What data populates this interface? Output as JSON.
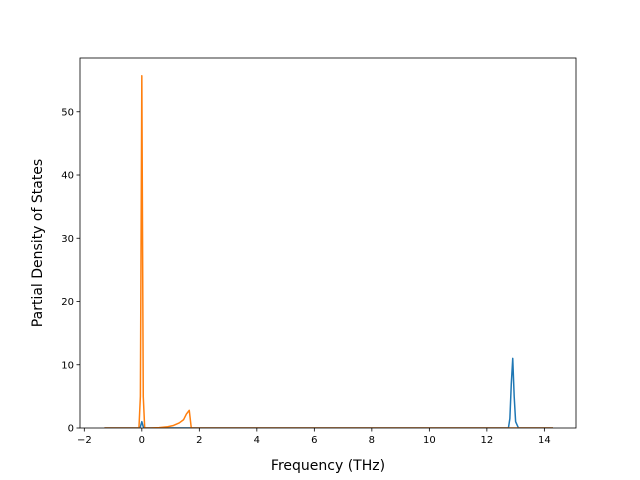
{
  "chart_data": {
    "type": "line",
    "title": "",
    "xlabel": "Frequency (THz)",
    "ylabel": "Partial Density of States",
    "xlim": [
      -2.15,
      15.1
    ],
    "ylim": [
      0,
      58.5
    ],
    "xticks": [
      -2,
      0,
      2,
      4,
      6,
      8,
      10,
      12,
      14
    ],
    "yticks": [
      0,
      10,
      20,
      30,
      40,
      50
    ],
    "xtick_labels": [
      "−2",
      "0",
      "2",
      "4",
      "6",
      "8",
      "10",
      "12",
      "14"
    ],
    "ytick_labels": [
      "0",
      "10",
      "20",
      "30",
      "40",
      "50"
    ],
    "grid": false,
    "legend": "none",
    "series": [
      {
        "color": "#1f77b4",
        "x": [
          -1.3,
          -0.1,
          -0.05,
          0.0,
          0.05,
          0.1,
          1.8,
          12.75,
          12.8,
          12.85,
          12.9,
          12.95,
          13.0,
          13.1,
          14.3
        ],
        "y": [
          0,
          0,
          0.2,
          1.0,
          0.2,
          0,
          0,
          0,
          1.5,
          7.0,
          11.0,
          5.0,
          1.0,
          0,
          0
        ]
      },
      {
        "color": "#ff7f0e",
        "x": [
          -1.3,
          -0.1,
          -0.05,
          0.0,
          0.05,
          0.1,
          0.3,
          0.6,
          0.9,
          1.1,
          1.3,
          1.45,
          1.55,
          1.65,
          1.72,
          1.8,
          12.7,
          14.3
        ],
        "y": [
          0,
          0,
          5,
          55.7,
          5,
          0,
          0,
          0.05,
          0.2,
          0.4,
          0.8,
          1.3,
          2.2,
          2.8,
          0,
          0,
          0,
          0
        ]
      }
    ]
  }
}
